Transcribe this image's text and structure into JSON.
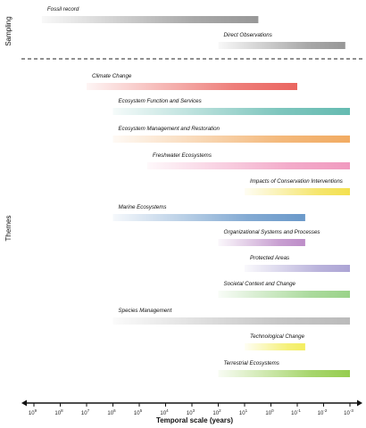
{
  "chart_data": {
    "type": "bar",
    "orientation": "horizontal",
    "xlabel": "Temporal scale (years)",
    "x_scale": "log",
    "x_direction": "decreasing",
    "xlim": [
      1000000000.0,
      0.001
    ],
    "x_ticks": [
      {
        "value": 1000000000.0,
        "label": "10",
        "exp": "9"
      },
      {
        "value": 100000000.0,
        "label": "10",
        "exp": "8"
      },
      {
        "value": 10000000.0,
        "label": "10",
        "exp": "7"
      },
      {
        "value": 1000000.0,
        "label": "10",
        "exp": "6"
      },
      {
        "value": 100000.0,
        "label": "10",
        "exp": "5"
      },
      {
        "value": 10000.0,
        "label": "10",
        "exp": "4"
      },
      {
        "value": 1000.0,
        "label": "10",
        "exp": "3"
      },
      {
        "value": 100.0,
        "label": "10",
        "exp": "2"
      },
      {
        "value": 10.0,
        "label": "10",
        "exp": "1"
      },
      {
        "value": 1,
        "label": "10",
        "exp": "0"
      },
      {
        "value": 0.1,
        "label": "10",
        "exp": "-1"
      },
      {
        "value": 0.01,
        "label": "10",
        "exp": "-2"
      },
      {
        "value": 0.001,
        "label": "10",
        "exp": "-3"
      }
    ],
    "groups": [
      {
        "name": "Sampling",
        "rows": [
          {
            "label": "Fossil record",
            "from": 500000000.0,
            "to": 3,
            "color": "#8c8c8c"
          },
          {
            "label": "Direct Observations",
            "from": 100,
            "to": 0.0015,
            "color": "#8c8c8c"
          }
        ]
      },
      {
        "name": "Themes",
        "rows": [
          {
            "label": "Climate Change",
            "from": 10000000.0,
            "to": 0.1,
            "color": "#e8544e"
          },
          {
            "label": "Ecosystem Function and Services",
            "from": 1000000.0,
            "to": 0.001,
            "color": "#54b3a8"
          },
          {
            "label": "Ecosystem Management and Restoration",
            "from": 1000000.0,
            "to": 0.001,
            "color": "#f0a251"
          },
          {
            "label": "Freshwater Ecosystems",
            "from": 50000.0,
            "to": 0.001,
            "color": "#ef8fb8"
          },
          {
            "label": "Impacts of Conservation Interventions",
            "from": 10,
            "to": 0.001,
            "color": "#f2dd3c"
          },
          {
            "label": "Marine Ecosystems",
            "from": 1000000.0,
            "to": 0.05,
            "color": "#5a8ec4"
          },
          {
            "label": "Organizational Systems and Processes",
            "from": 100,
            "to": 0.05,
            "color": "#b680c2"
          },
          {
            "label": "Protected Areas",
            "from": 10,
            "to": 0.001,
            "color": "#a39ad0"
          },
          {
            "label": "Societal Context and Change",
            "from": 100,
            "to": 0.001,
            "color": "#8fce7c"
          },
          {
            "label": "Species Management",
            "from": 1000000.0,
            "to": 0.001,
            "color": "#b3b3b3"
          },
          {
            "label": "Technological Change",
            "from": 10,
            "to": 0.05,
            "color": "#f2ec4e"
          },
          {
            "label": "Terrestrial Ecosystems",
            "from": 100,
            "to": 0.001,
            "color": "#8ac83c"
          }
        ]
      }
    ]
  }
}
